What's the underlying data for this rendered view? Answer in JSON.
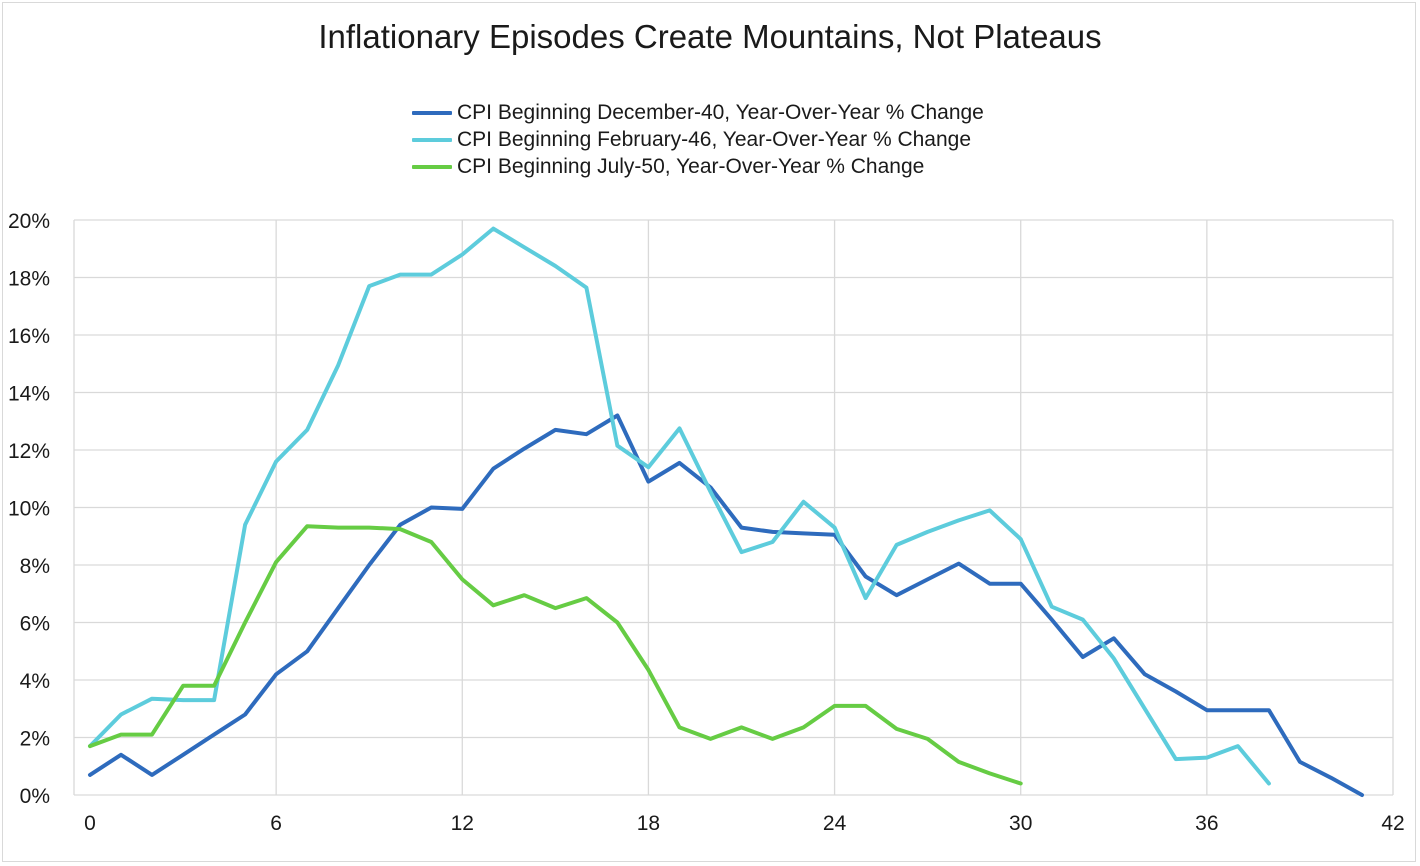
{
  "chart_data": {
    "type": "line",
    "title": "Inflationary Episodes Create Mountains, Not Plateaus",
    "xlabel": "",
    "ylabel": "",
    "xlim": [
      0,
      42
    ],
    "ylim": [
      0,
      20
    ],
    "x_ticks": [
      "0",
      "6",
      "12",
      "18",
      "24",
      "30",
      "36",
      "42"
    ],
    "y_ticks": [
      "0%",
      "2%",
      "4%",
      "6%",
      "8%",
      "10%",
      "12%",
      "14%",
      "16%",
      "18%",
      "20%"
    ],
    "grid": true,
    "legend_position": "top-center",
    "series": [
      {
        "name": "CPI Beginning December-40, Year-Over-Year % Change",
        "color": "#2e6bbd",
        "values": [
          0.7,
          1.4,
          0.7,
          1.4,
          2.1,
          2.8,
          4.2,
          5.0,
          6.5,
          8.0,
          9.4,
          10.0,
          9.95,
          11.35,
          12.05,
          12.7,
          12.55,
          13.2,
          10.9,
          11.55,
          10.7,
          9.3,
          9.15,
          9.1,
          9.05,
          7.6,
          6.95,
          7.5,
          8.05,
          7.35,
          7.35,
          6.1,
          4.8,
          5.45,
          4.2,
          3.6,
          2.95,
          2.95,
          2.95,
          1.15,
          0.6,
          0.0
        ]
      },
      {
        "name": "CPI Beginning February-46, Year-Over-Year % Change",
        "color": "#5dccdc",
        "values": [
          1.7,
          2.8,
          3.35,
          3.3,
          3.3,
          9.4,
          11.6,
          12.7,
          14.95,
          17.7,
          18.1,
          18.1,
          18.8,
          19.7,
          19.05,
          18.4,
          17.65,
          12.15,
          11.4,
          12.75,
          10.55,
          8.45,
          8.8,
          10.2,
          9.3,
          6.85,
          8.7,
          9.15,
          9.55,
          9.9,
          8.9,
          6.55,
          6.1,
          4.75,
          3.0,
          1.25,
          1.3,
          1.7,
          0.4
        ]
      },
      {
        "name": "CPI Beginning July-50, Year-Over-Year % Change",
        "color": "#66cc44",
        "values": [
          1.7,
          2.1,
          2.1,
          3.8,
          3.8,
          6.0,
          8.1,
          9.35,
          9.3,
          9.3,
          9.25,
          8.8,
          7.5,
          6.6,
          6.95,
          6.5,
          6.85,
          6.0,
          4.35,
          2.35,
          1.95,
          2.35,
          1.95,
          2.35,
          3.1,
          3.1,
          2.3,
          1.95,
          1.15,
          0.75,
          0.4
        ]
      }
    ]
  }
}
